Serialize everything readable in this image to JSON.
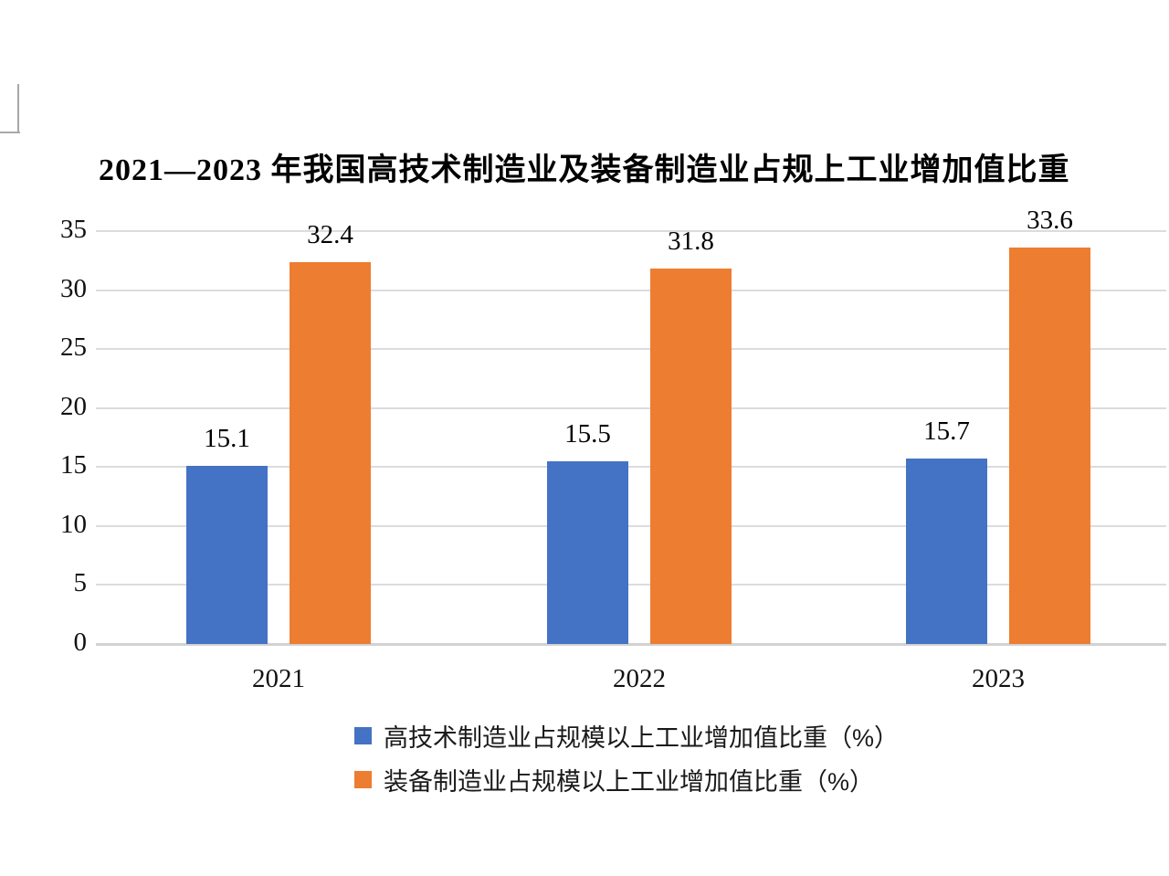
{
  "page": {
    "background": "#ffffff",
    "corner_mark_color": "#a8a8a8"
  },
  "title": "2021—2023 年我国高技术制造业及装备制造业占规上工业增加值比重",
  "chart_data": {
    "type": "bar",
    "title": "2021—2023 年我国高技术制造业及装备制造业占规上工业增加值比重",
    "categories": [
      "2021",
      "2022",
      "2023"
    ],
    "series": [
      {
        "name": "高技术制造业占规模以上工业增加值比重（%）",
        "color": "#4472C4",
        "values": [
          15.1,
          15.5,
          15.7
        ]
      },
      {
        "name": "装备制造业占规模以上工业增加值比重（%）",
        "color": "#ED7D31",
        "values": [
          32.4,
          31.8,
          33.6
        ]
      }
    ],
    "xlabel": "",
    "ylabel": "",
    "ylim": [
      0,
      35
    ],
    "yticks": [
      0,
      5,
      10,
      15,
      20,
      25,
      30,
      35
    ],
    "grid": true,
    "gridline_color": "#dcdcdc",
    "axis_line_color": "#d2d2d2",
    "data_labels": true,
    "data_label_values": [
      "15.1",
      "32.4",
      "15.5",
      "31.8",
      "15.7",
      "33.6"
    ],
    "legend_position": "bottom"
  }
}
